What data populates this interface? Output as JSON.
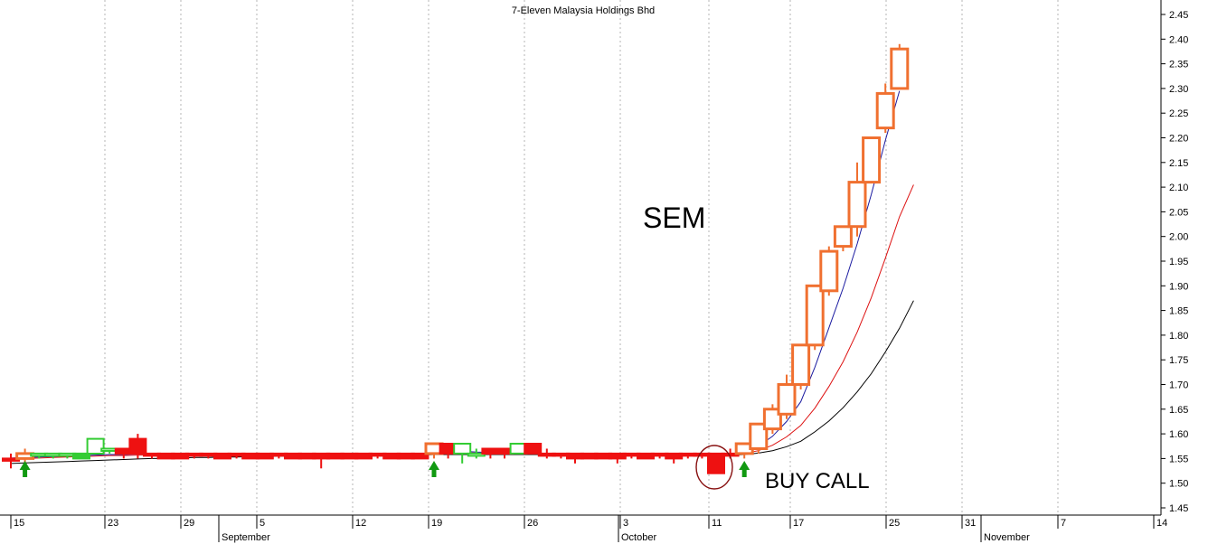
{
  "chart_data": {
    "type": "candlestick",
    "title": "7-Eleven Malaysia Holdings Bhd",
    "xlabel": "",
    "ylabel": "",
    "ylim": [
      1.45,
      2.475
    ],
    "y_ticks": [
      "1.45",
      "1.50",
      "1.55",
      "1.60",
      "1.65",
      "1.70",
      "1.75",
      "1.80",
      "1.85",
      "1.90",
      "1.95",
      "2.00",
      "2.05",
      "2.10",
      "2.15",
      "2.20",
      "2.25",
      "2.30",
      "2.35",
      "2.40",
      "2.45"
    ],
    "x_day_ticks": [
      "15",
      "23",
      "29",
      "5",
      "12",
      "19",
      "26",
      "3",
      "11",
      "17",
      "25",
      "31",
      "7",
      "14"
    ],
    "x_month_labels": [
      "September",
      "October",
      "November"
    ],
    "grid": true,
    "colors": {
      "candle_up_orange": "#f07030",
      "candle_red": "#ee1111",
      "candle_green": "#33cc33",
      "ma_fast": "#1a1aa0",
      "ma_mid": "#dd1111",
      "ma_slow": "#000000",
      "arrow": "#119911",
      "circle": "#881111",
      "grid": "#b4b4b4"
    },
    "candles": [
      {
        "o": 1.55,
        "h": 1.56,
        "l": 1.53,
        "c": 1.55,
        "color": "red"
      },
      {
        "o": 1.55,
        "h": 1.57,
        "l": 1.54,
        "c": 1.56,
        "color": "orange"
      },
      {
        "o": 1.56,
        "h": 1.56,
        "l": 1.55,
        "c": 1.56,
        "color": "green"
      },
      {
        "o": 1.56,
        "h": 1.56,
        "l": 1.55,
        "c": 1.56,
        "color": "green"
      },
      {
        "o": 1.56,
        "h": 1.56,
        "l": 1.55,
        "c": 1.56,
        "color": "green"
      },
      {
        "o": 1.56,
        "h": 1.56,
        "l": 1.55,
        "c": 1.55,
        "color": "green"
      },
      {
        "o": 1.56,
        "h": 1.59,
        "l": 1.56,
        "c": 1.59,
        "color": "green"
      },
      {
        "o": 1.57,
        "h": 1.57,
        "l": 1.56,
        "c": 1.57,
        "color": "green"
      },
      {
        "o": 1.56,
        "h": 1.57,
        "l": 1.55,
        "c": 1.57,
        "color": "red"
      },
      {
        "o": 1.56,
        "h": 1.6,
        "l": 1.55,
        "c": 1.59,
        "color": "red"
      },
      {
        "o": 1.56,
        "h": 1.56,
        "l": 1.55,
        "c": 1.56,
        "color": "red"
      },
      {
        "o": 1.56,
        "h": 1.56,
        "l": 1.55,
        "c": 1.55,
        "color": "red"
      },
      {
        "o": 1.56,
        "h": 1.56,
        "l": 1.55,
        "c": 1.55,
        "color": "red"
      },
      {
        "o": 1.56,
        "h": 1.56,
        "l": 1.55,
        "c": 1.56,
        "color": "red"
      },
      {
        "o": 1.56,
        "h": 1.56,
        "l": 1.55,
        "c": 1.56,
        "color": "red"
      },
      {
        "o": 1.56,
        "h": 1.56,
        "l": 1.55,
        "c": 1.55,
        "color": "red"
      },
      {
        "o": 1.56,
        "h": 1.56,
        "l": 1.55,
        "c": 1.56,
        "color": "red"
      },
      {
        "o": 1.56,
        "h": 1.56,
        "l": 1.55,
        "c": 1.55,
        "color": "red"
      },
      {
        "o": 1.56,
        "h": 1.56,
        "l": 1.55,
        "c": 1.55,
        "color": "red"
      },
      {
        "o": 1.56,
        "h": 1.56,
        "l": 1.55,
        "c": 1.56,
        "color": "red"
      },
      {
        "o": 1.56,
        "h": 1.56,
        "l": 1.55,
        "c": 1.55,
        "color": "red"
      },
      {
        "o": 1.56,
        "h": 1.56,
        "l": 1.55,
        "c": 1.55,
        "color": "red"
      },
      {
        "o": 1.56,
        "h": 1.56,
        "l": 1.53,
        "c": 1.55,
        "color": "red"
      },
      {
        "o": 1.56,
        "h": 1.56,
        "l": 1.55,
        "c": 1.55,
        "color": "red"
      },
      {
        "o": 1.56,
        "h": 1.56,
        "l": 1.55,
        "c": 1.55,
        "color": "red"
      },
      {
        "o": 1.56,
        "h": 1.56,
        "l": 1.55,
        "c": 1.55,
        "color": "red"
      },
      {
        "o": 1.56,
        "h": 1.56,
        "l": 1.55,
        "c": 1.56,
        "color": "red"
      },
      {
        "o": 1.56,
        "h": 1.56,
        "l": 1.55,
        "c": 1.55,
        "color": "red"
      },
      {
        "o": 1.56,
        "h": 1.56,
        "l": 1.55,
        "c": 1.55,
        "color": "red"
      },
      {
        "o": 1.56,
        "h": 1.56,
        "l": 1.55,
        "c": 1.55,
        "color": "red"
      },
      {
        "o": 1.56,
        "h": 1.58,
        "l": 1.55,
        "c": 1.58,
        "color": "orange"
      },
      {
        "o": 1.56,
        "h": 1.58,
        "l": 1.55,
        "c": 1.58,
        "color": "red"
      },
      {
        "o": 1.56,
        "h": 1.58,
        "l": 1.54,
        "c": 1.58,
        "color": "green"
      },
      {
        "o": 1.56,
        "h": 1.57,
        "l": 1.55,
        "c": 1.56,
        "color": "green"
      },
      {
        "o": 1.56,
        "h": 1.57,
        "l": 1.55,
        "c": 1.57,
        "color": "red"
      },
      {
        "o": 1.56,
        "h": 1.57,
        "l": 1.55,
        "c": 1.57,
        "color": "red"
      },
      {
        "o": 1.56,
        "h": 1.58,
        "l": 1.56,
        "c": 1.58,
        "color": "green"
      },
      {
        "o": 1.56,
        "h": 1.58,
        "l": 1.56,
        "c": 1.58,
        "color": "red"
      },
      {
        "o": 1.56,
        "h": 1.57,
        "l": 1.55,
        "c": 1.56,
        "color": "red"
      },
      {
        "o": 1.56,
        "h": 1.56,
        "l": 1.55,
        "c": 1.56,
        "color": "red"
      },
      {
        "o": 1.56,
        "h": 1.56,
        "l": 1.54,
        "c": 1.55,
        "color": "red"
      },
      {
        "o": 1.56,
        "h": 1.56,
        "l": 1.55,
        "c": 1.55,
        "color": "red"
      },
      {
        "o": 1.56,
        "h": 1.56,
        "l": 1.55,
        "c": 1.55,
        "color": "red"
      },
      {
        "o": 1.56,
        "h": 1.56,
        "l": 1.54,
        "c": 1.55,
        "color": "red"
      },
      {
        "o": 1.56,
        "h": 1.56,
        "l": 1.55,
        "c": 1.56,
        "color": "red"
      },
      {
        "o": 1.56,
        "h": 1.56,
        "l": 1.55,
        "c": 1.55,
        "color": "red"
      },
      {
        "o": 1.56,
        "h": 1.56,
        "l": 1.55,
        "c": 1.56,
        "color": "red"
      },
      {
        "o": 1.56,
        "h": 1.56,
        "l": 1.54,
        "c": 1.55,
        "color": "red"
      },
      {
        "o": 1.56,
        "h": 1.56,
        "l": 1.55,
        "c": 1.56,
        "color": "red"
      },
      {
        "o": 1.56,
        "h": 1.56,
        "l": 1.55,
        "c": 1.56,
        "color": "red"
      },
      {
        "o": 1.56,
        "h": 1.56,
        "l": 1.52,
        "c": 1.52,
        "color": "red"
      },
      {
        "o": 1.56,
        "h": 1.57,
        "l": 1.55,
        "c": 1.56,
        "color": "red"
      },
      {
        "o": 1.56,
        "h": 1.58,
        "l": 1.55,
        "c": 1.58,
        "color": "orange"
      },
      {
        "o": 1.57,
        "h": 1.62,
        "l": 1.56,
        "c": 1.62,
        "color": "orange"
      },
      {
        "o": 1.61,
        "h": 1.66,
        "l": 1.6,
        "c": 1.65,
        "color": "orange"
      },
      {
        "o": 1.64,
        "h": 1.72,
        "l": 1.63,
        "c": 1.7,
        "color": "orange"
      },
      {
        "o": 1.7,
        "h": 1.78,
        "l": 1.69,
        "c": 1.78,
        "color": "orange"
      },
      {
        "o": 1.78,
        "h": 1.9,
        "l": 1.77,
        "c": 1.9,
        "color": "orange"
      },
      {
        "o": 1.89,
        "h": 1.98,
        "l": 1.88,
        "c": 1.97,
        "color": "orange"
      },
      {
        "o": 1.98,
        "h": 2.02,
        "l": 1.97,
        "c": 2.02,
        "color": "orange"
      },
      {
        "o": 2.02,
        "h": 2.15,
        "l": 2.0,
        "c": 2.11,
        "color": "orange"
      },
      {
        "o": 2.11,
        "h": 2.2,
        "l": 2.11,
        "c": 2.2,
        "color": "orange"
      },
      {
        "o": 2.22,
        "h": 2.31,
        "l": 2.21,
        "c": 2.29,
        "color": "orange"
      },
      {
        "o": 2.3,
        "h": 2.39,
        "l": 2.3,
        "c": 2.38,
        "color": "orange"
      }
    ],
    "ma_fast": [
      1.551,
      1.552,
      1.553,
      1.554,
      1.555,
      1.556,
      1.557,
      1.558,
      1.558,
      1.559,
      1.559,
      1.559,
      1.559,
      1.559,
      1.559,
      1.559,
      1.559,
      1.559,
      1.559,
      1.559,
      1.559,
      1.559,
      1.559,
      1.559,
      1.559,
      1.559,
      1.559,
      1.559,
      1.559,
      1.559,
      1.563,
      1.566,
      1.565,
      1.563,
      1.562,
      1.561,
      1.561,
      1.561,
      1.56,
      1.56,
      1.56,
      1.56,
      1.56,
      1.56,
      1.56,
      1.56,
      1.56,
      1.56,
      1.56,
      1.56,
      1.558,
      1.558,
      1.563,
      1.575,
      1.595,
      1.625,
      1.665,
      1.735,
      1.815,
      1.895,
      1.985,
      2.085,
      2.195,
      2.295
    ],
    "ma_mid": [
      1.55,
      1.55,
      1.551,
      1.552,
      1.553,
      1.554,
      1.555,
      1.556,
      1.556,
      1.557,
      1.557,
      1.557,
      1.557,
      1.558,
      1.558,
      1.558,
      1.558,
      1.558,
      1.558,
      1.558,
      1.558,
      1.558,
      1.558,
      1.558,
      1.558,
      1.558,
      1.558,
      1.558,
      1.558,
      1.558,
      1.56,
      1.562,
      1.562,
      1.561,
      1.561,
      1.561,
      1.561,
      1.56,
      1.56,
      1.56,
      1.56,
      1.56,
      1.56,
      1.56,
      1.56,
      1.56,
      1.56,
      1.56,
      1.56,
      1.559,
      1.558,
      1.558,
      1.56,
      1.566,
      1.577,
      1.594,
      1.617,
      1.652,
      1.696,
      1.746,
      1.806,
      1.876,
      1.956,
      2.04,
      2.105
    ],
    "ma_slow": [
      1.54,
      1.541,
      1.542,
      1.543,
      1.544,
      1.545,
      1.546,
      1.547,
      1.548,
      1.549,
      1.55,
      1.55,
      1.551,
      1.552,
      1.552,
      1.553,
      1.553,
      1.554,
      1.554,
      1.555,
      1.555,
      1.555,
      1.556,
      1.556,
      1.556,
      1.557,
      1.557,
      1.557,
      1.557,
      1.557,
      1.558,
      1.558,
      1.558,
      1.558,
      1.558,
      1.558,
      1.558,
      1.558,
      1.558,
      1.558,
      1.558,
      1.558,
      1.558,
      1.558,
      1.558,
      1.558,
      1.558,
      1.558,
      1.558,
      1.558,
      1.557,
      1.557,
      1.558,
      1.561,
      1.566,
      1.574,
      1.585,
      1.604,
      1.626,
      1.653,
      1.685,
      1.722,
      1.766,
      1.814,
      1.87
    ],
    "arrows": [
      1,
      30,
      52
    ]
  },
  "annotations": {
    "sem_label": "SEM",
    "buy_call_label": "BUY CALL"
  }
}
